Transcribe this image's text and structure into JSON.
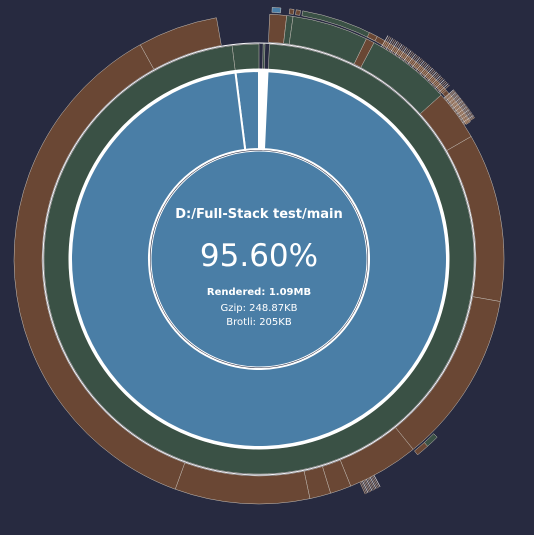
{
  "center": {
    "module_path": "D:/Full-Stack test/main",
    "percentage": "95.60%",
    "rendered_label": "Rendered: 1.09MB",
    "gzip_label": "Gzip: 248.87KB",
    "brotli_label": "Brotli: 205KB"
  },
  "colors": {
    "background": "#272a40",
    "level1": "#4a7ea6",
    "level2": "#3a5145",
    "level3": "#6a4734",
    "level4": "#7a5440",
    "separator": "#ffffff",
    "hairline": "#c7c1ba"
  },
  "sunburst": {
    "selected_share": 0.956,
    "levels": [
      {
        "name": "level-1",
        "color_key": "level1",
        "arcs": [
          [
            -7.2,
            0,
            0,
            "#4a7ea6"
          ],
          [
            0.2,
            0.6,
            1,
            "#ffffff"
          ],
          [
            0.8,
            1.1,
            0,
            "#4a7ea6"
          ],
          [
            1.2,
            1.6,
            0,
            "#4a7ea6"
          ],
          [
            1.8,
            2.2,
            0,
            "#4a7ea6"
          ],
          [
            2.6,
            352.8,
            0,
            "#4a7ea6"
          ]
        ]
      },
      {
        "name": "level-2",
        "color_key": "level2",
        "arcs": [
          [
            -7.2,
            0,
            0,
            "#3a5145"
          ],
          [
            1.1,
            1.6,
            0,
            "#3a5145"
          ],
          [
            2.8,
            352.8,
            0,
            "#3a5145"
          ]
        ]
      },
      {
        "name": "level-3",
        "color_key": "level3",
        "arcs": [
          [
            -29,
            -10,
            0,
            "#6a4734"
          ],
          [
            2.5,
            6.5,
            0,
            "#6a4734"
          ],
          [
            6.5,
            8,
            0,
            "#3a5145"
          ],
          [
            8,
            26,
            0,
            "#3a5145"
          ],
          [
            26,
            28,
            0,
            "#6a4734"
          ],
          [
            28,
            48,
            0,
            "#3a5145"
          ],
          [
            48,
            60,
            0,
            "#6a4734"
          ],
          [
            60,
            100,
            0,
            "#6a4734"
          ],
          [
            100,
            141,
            0,
            "#6a4734"
          ],
          [
            141,
            158,
            0,
            "#6a4734"
          ],
          [
            158,
            163,
            0,
            "#6a4734"
          ],
          [
            163,
            168,
            0,
            "#6a4734"
          ],
          [
            168,
            200,
            0,
            "#6a4734"
          ],
          [
            200,
            331,
            0,
            "#6a4734"
          ]
        ]
      },
      {
        "name": "level-4",
        "color_key": "level4",
        "arcs": [
          [
            3,
            5,
            0,
            "#4a7ea6"
          ],
          [
            7,
            8,
            0,
            "#6a4734"
          ],
          [
            8.5,
            9.5,
            0,
            "#6a4734"
          ],
          [
            10,
            28,
            0,
            "#3a5145"
          ],
          [
            26,
            28,
            0,
            "#6a4734"
          ],
          [
            28,
            48,
            0,
            "#6a4734"
          ],
          [
            48,
            57,
            0,
            "#6a4734"
          ],
          [
            135,
            138,
            0,
            "#3a5145"
          ],
          [
            138,
            141,
            0,
            "#6a4734"
          ]
        ]
      }
    ]
  }
}
